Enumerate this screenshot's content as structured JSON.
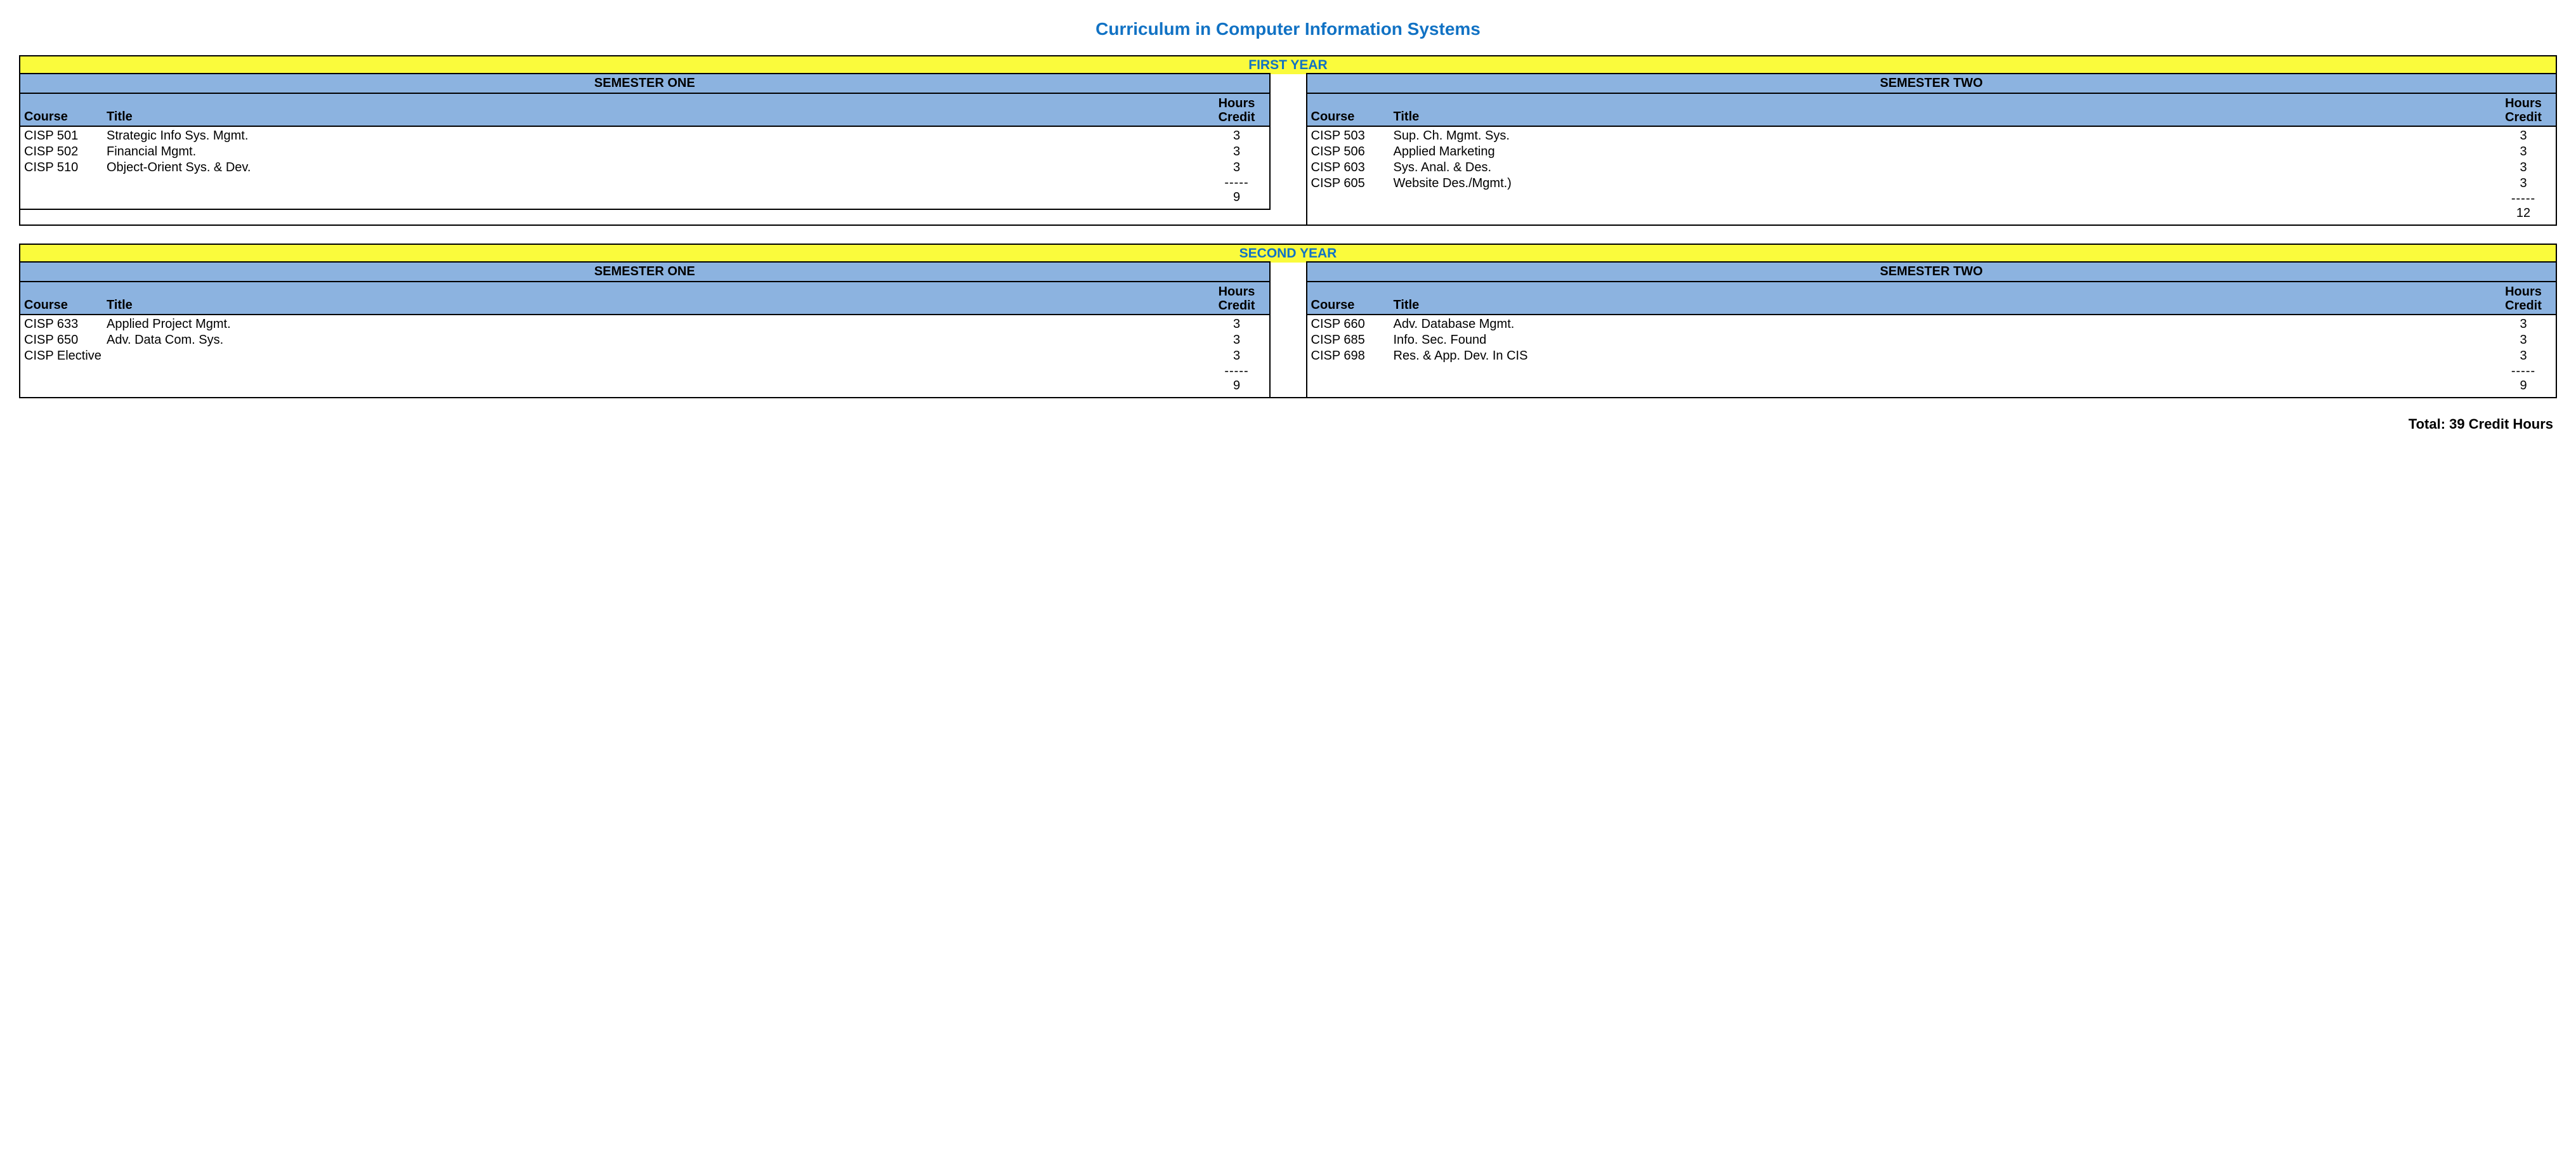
{
  "title": "Curriculum in Computer Information Systems",
  "colors": {
    "title_text": "#1172c4",
    "year_header_bg": "#fafb3c",
    "year_header_text": "#1172c4",
    "semester_header_bg": "#8cb3e0",
    "border": "#000000",
    "background": "#ffffff",
    "body_text": "#000000"
  },
  "typography": {
    "title_fontsize": 28,
    "year_header_fontsize": 21,
    "semester_title_fontsize": 20,
    "column_header_fontsize": 20,
    "row_fontsize": 20,
    "total_fontsize": 22,
    "font_family": "Tahoma, Verdana, Arial, sans-serif"
  },
  "column_labels": {
    "course": "Course",
    "title": "Title",
    "credit_line1": "Hours",
    "credit_line2": "Credit"
  },
  "divider": "-----",
  "years": [
    {
      "label": "FIRST YEAR",
      "semesters": [
        {
          "label": "SEMESTER ONE",
          "rows": [
            {
              "course": "CISP 501",
              "title": "Strategic Info Sys. Mgmt.",
              "credit": "3"
            },
            {
              "course": "CISP 502",
              "title": "Financial Mgmt.",
              "credit": "3"
            },
            {
              "course": "CISP 510",
              "title": "Object-Orient Sys. & Dev.",
              "credit": "3"
            }
          ],
          "subtotal": "9"
        },
        {
          "label": "SEMESTER TWO",
          "rows": [
            {
              "course": "CISP 503",
              "title": "Sup. Ch. Mgmt. Sys.",
              "credit": "3"
            },
            {
              "course": "CISP 506",
              "title": "Applied Marketing",
              "credit": "3"
            },
            {
              "course": "CISP 603",
              "title": "Sys. Anal. & Des.",
              "credit": "3"
            },
            {
              "course": "CISP 605",
              "title": "Website Des./Mgmt.)",
              "credit": "3"
            }
          ],
          "subtotal": "12"
        }
      ]
    },
    {
      "label": "SECOND YEAR",
      "semesters": [
        {
          "label": "SEMESTER ONE",
          "rows": [
            {
              "course": "CISP 633",
              "title": "Applied Project Mgmt.",
              "credit": "3"
            },
            {
              "course": "CISP 650",
              "title": "Adv. Data Com. Sys.",
              "credit": "3"
            },
            {
              "course": "CISP Elective",
              "title": "",
              "credit": "3"
            }
          ],
          "subtotal": "9"
        },
        {
          "label": "SEMESTER TWO",
          "rows": [
            {
              "course": "CISP 660",
              "title": "Adv. Database Mgmt.",
              "credit": "3"
            },
            {
              "course": "CISP 685",
              "title": "Info. Sec. Found",
              "credit": "3"
            },
            {
              "course": "CISP 698",
              "title": "Res. & App. Dev. In CIS",
              "credit": "3"
            }
          ],
          "subtotal": "9"
        }
      ]
    }
  ],
  "total_label": "Total: 39 Credit Hours"
}
